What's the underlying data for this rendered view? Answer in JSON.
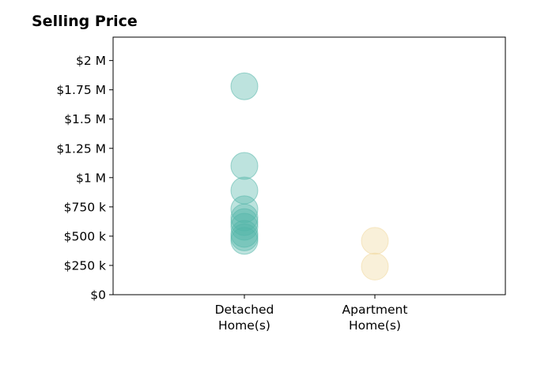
{
  "chart_data": {
    "type": "scatter",
    "title": "Selling Price",
    "xlabel": "",
    "ylabel": "",
    "categories": [
      "Detached Home(s)",
      "Apartment Home(s)"
    ],
    "category_lines": [
      [
        "Detached",
        "Home(s)"
      ],
      [
        "Apartment",
        "Home(s)"
      ]
    ],
    "ylim": [
      0,
      2200000
    ],
    "yticks": [
      0,
      250000,
      500000,
      750000,
      1000000,
      1250000,
      1500000,
      1750000,
      2000000
    ],
    "ytick_labels": [
      "$0",
      "$250 k",
      "$500 k",
      "$750 k",
      "$1 M",
      "$1.25 M",
      "$1.5 M",
      "$1.75 M",
      "$2 M"
    ],
    "grid": false,
    "series": [
      {
        "category": "Detached Home(s)",
        "color": "#52b5a8",
        "values": [
          1780000,
          1100000,
          890000,
          730000,
          660000,
          620000,
          580000,
          520000,
          490000,
          460000
        ]
      },
      {
        "category": "Apartment Home(s)",
        "color": "#f0d79a",
        "values": [
          460000,
          240000
        ]
      }
    ]
  }
}
